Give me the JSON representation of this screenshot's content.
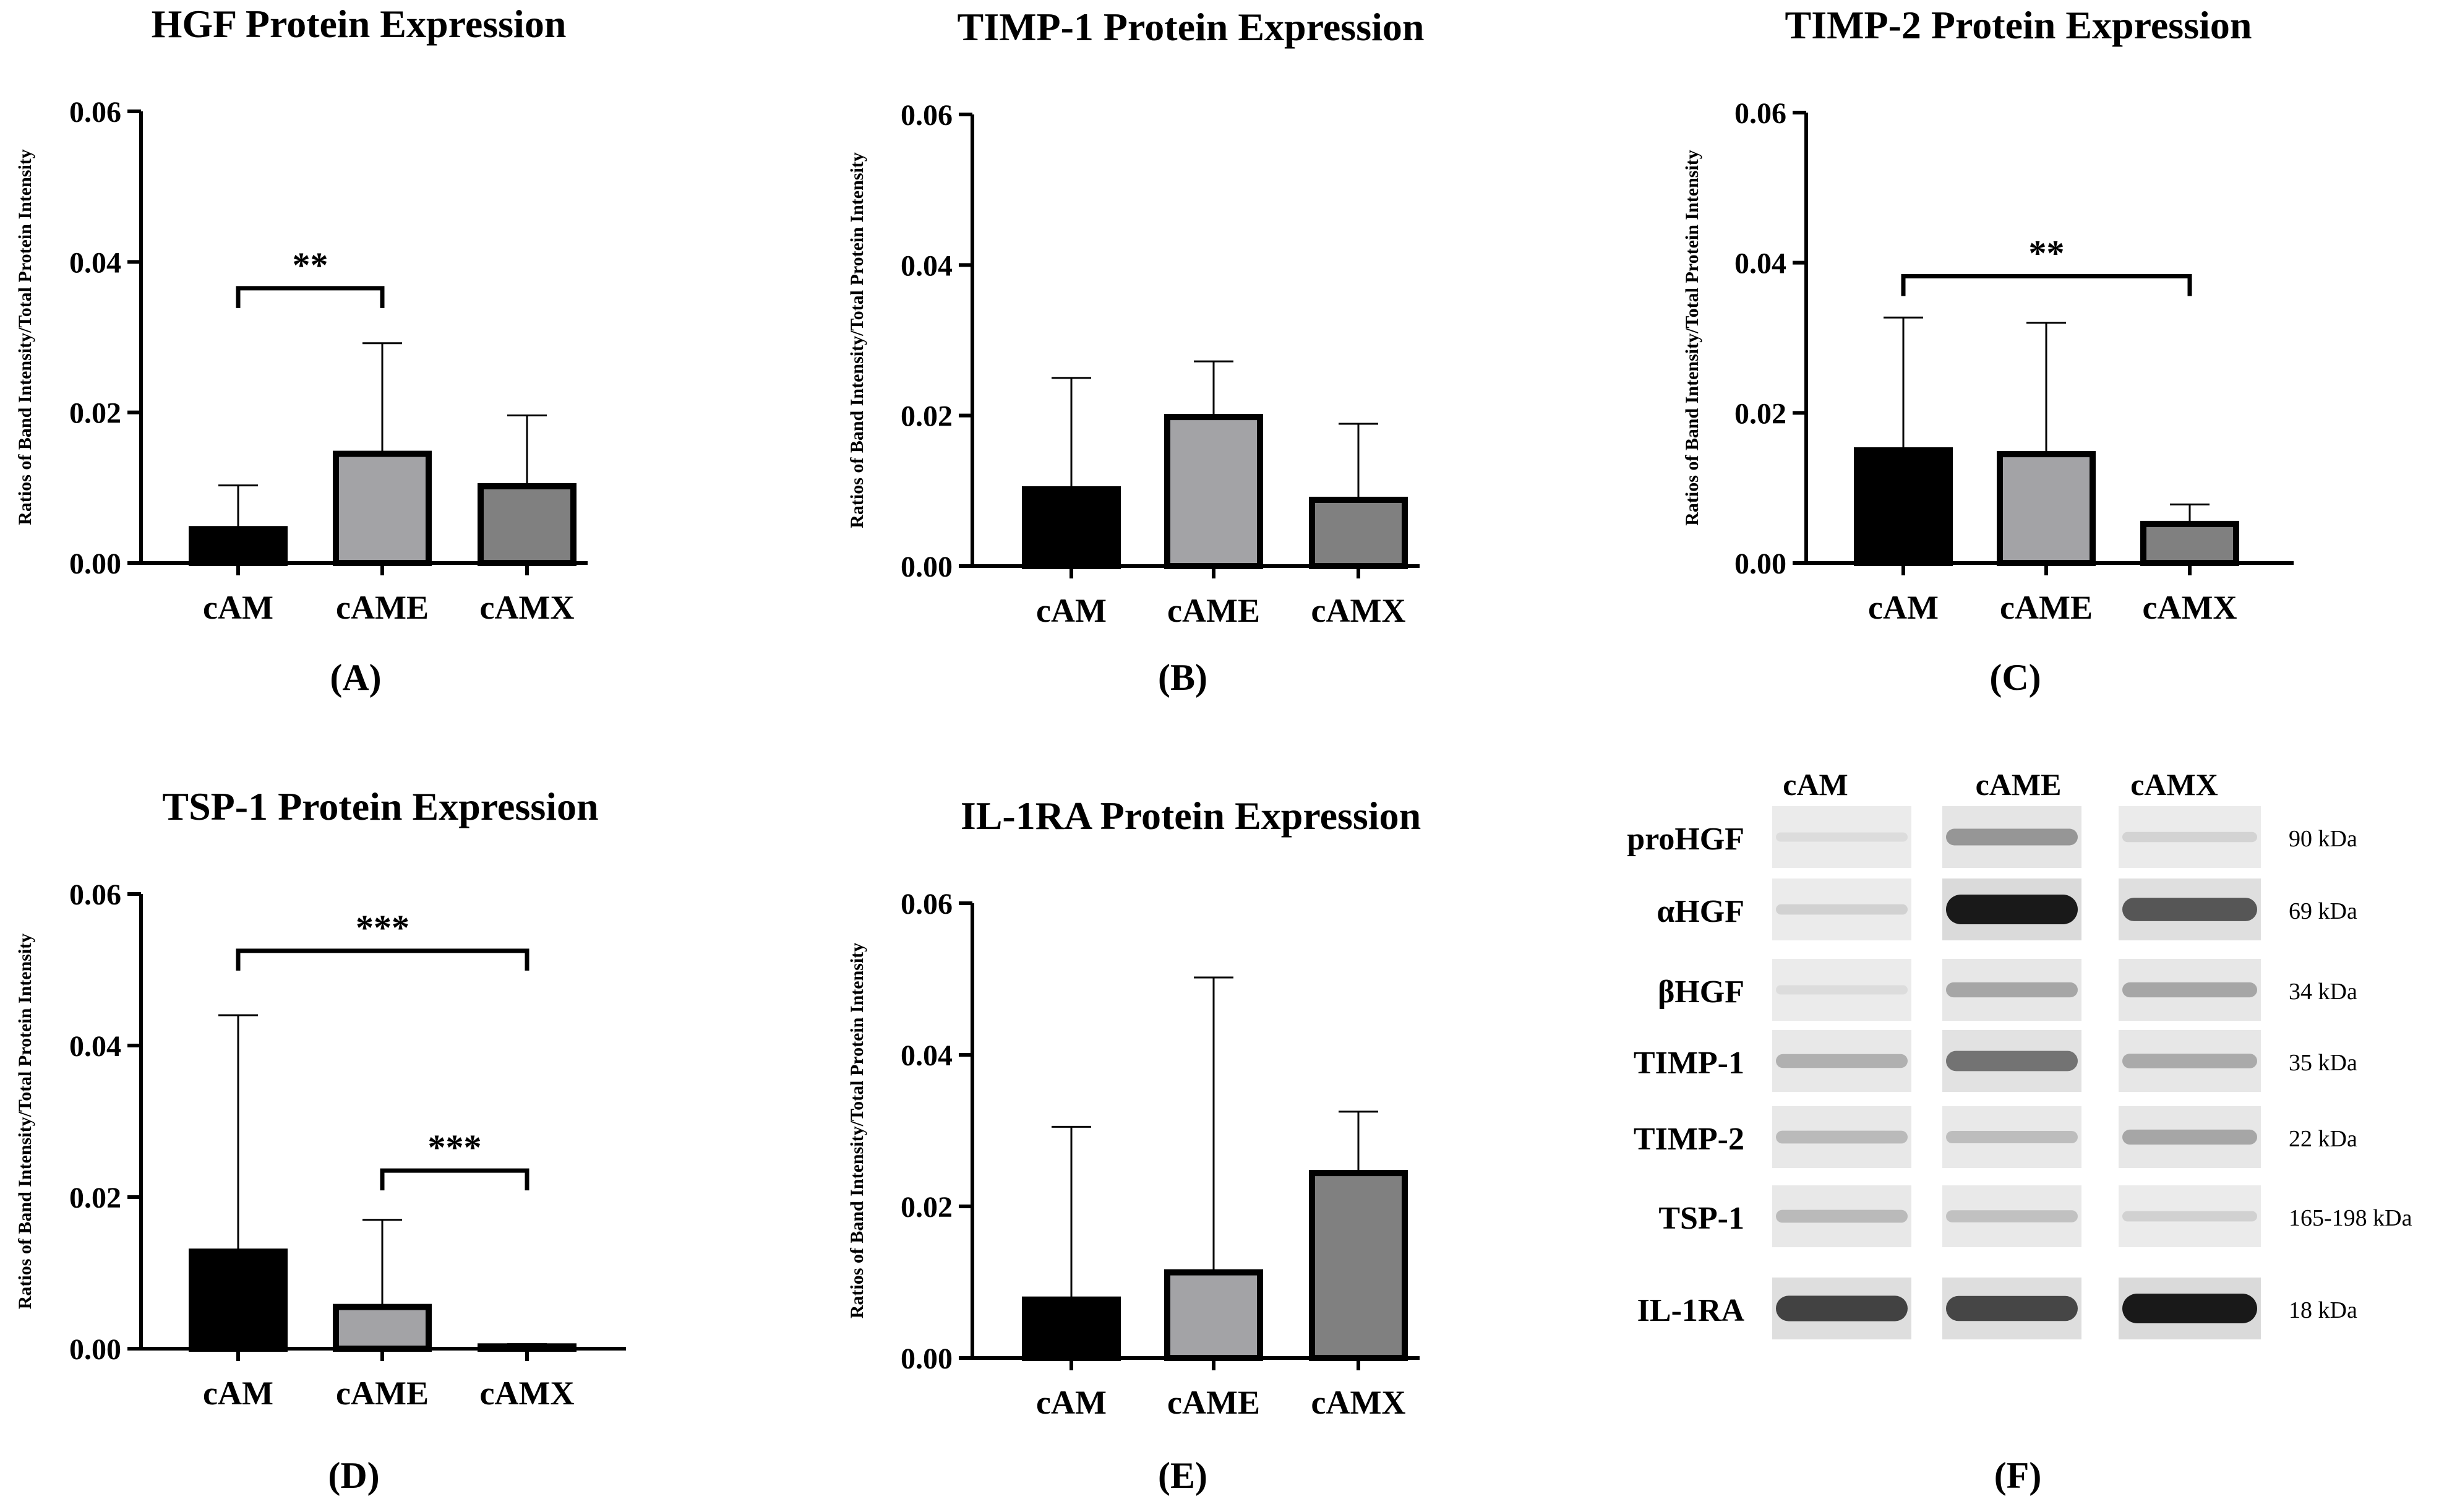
{
  "chart_data": [
    {
      "type": "bar",
      "panel": "(A)",
      "title": "HGF Protein Expression",
      "ylabel": "Ratios of Band Intensity/Total Protein Intensity",
      "xlabel": "",
      "categories": [
        "cAM",
        "cAME",
        "cAMX"
      ],
      "values": [
        0.0045,
        0.0145,
        0.0102
      ],
      "errors": [
        0.0058,
        0.0147,
        0.0094
      ],
      "colors": [
        "#000000",
        "#a3a3a6",
        "#808080"
      ],
      "ylim": [
        0,
        0.06
      ],
      "yticks": [
        "0.00",
        "0.02",
        "0.04",
        "0.06"
      ],
      "significance": [
        {
          "from": 0,
          "to": 1,
          "label": "**",
          "y": 0.0365
        }
      ]
    },
    {
      "type": "bar",
      "panel": "(B)",
      "title": "TIMP-1 Protein Expression",
      "ylabel": "Ratios of Band Intensity/Total Protein Intensity",
      "xlabel": "",
      "categories": [
        "cAM",
        "cAME",
        "cAMX"
      ],
      "values": [
        0.0102,
        0.0198,
        0.0088
      ],
      "errors": [
        0.0148,
        0.0074,
        0.0101
      ],
      "colors": [
        "#000000",
        "#a3a3a6",
        "#808080"
      ],
      "ylim": [
        0,
        0.06
      ],
      "yticks": [
        "0.00",
        "0.02",
        "0.04",
        "0.06"
      ],
      "significance": []
    },
    {
      "type": "bar",
      "panel": "(C)",
      "title": "TIMP-2 Protein Expression",
      "ylabel": "Ratios of Band Intensity/Total Protein Intensity",
      "xlabel": "",
      "categories": [
        "cAM",
        "cAME",
        "cAMX"
      ],
      "values": [
        0.015,
        0.0145,
        0.0052
      ],
      "errors": [
        0.0177,
        0.0175,
        0.0026
      ],
      "colors": [
        "#000000",
        "#a3a3a6",
        "#808080"
      ],
      "ylim": [
        0,
        0.06
      ],
      "yticks": [
        "0.00",
        "0.02",
        "0.04",
        "0.06"
      ],
      "significance": [
        {
          "from": 0,
          "to": 2,
          "label": "**",
          "y": 0.0382
        }
      ]
    },
    {
      "type": "bar",
      "panel": "(D)",
      "title": "TSP-1 Protein Expression",
      "ylabel": "Ratios of Band Intensity/Total Protein Intensity",
      "xlabel": "",
      "categories": [
        "cAM",
        "cAME",
        "cAMX"
      ],
      "values": [
        0.0128,
        0.0055,
        0.0003
      ],
      "errors": [
        0.0312,
        0.0115,
        0.0003
      ],
      "colors": [
        "#000000",
        "#a3a3a6",
        "#808080"
      ],
      "ylim": [
        0,
        0.06
      ],
      "yticks": [
        "0.00",
        "0.02",
        "0.04",
        "0.06"
      ],
      "significance": [
        {
          "from": 0,
          "to": 2,
          "label": "***",
          "y": 0.0525
        },
        {
          "from": 1,
          "to": 2,
          "label": "***",
          "y": 0.0235
        }
      ]
    },
    {
      "type": "bar",
      "panel": "(E)",
      "title": "IL-1RA Protein Expression",
      "ylabel": "Ratios of Band Intensity/Total Protein Intensity",
      "xlabel": "",
      "categories": [
        "cAM",
        "cAME",
        "cAMX"
      ],
      "values": [
        0.0077,
        0.0113,
        0.0244
      ],
      "errors": [
        0.0228,
        0.0389,
        0.0081
      ],
      "colors": [
        "#000000",
        "#a3a3a6",
        "#808080"
      ],
      "ylim": [
        0,
        0.06
      ],
      "yticks": [
        "0.00",
        "0.02",
        "0.04",
        "0.06"
      ],
      "significance": []
    }
  ],
  "blot": {
    "panel": "(F)",
    "columns": [
      "cAM",
      "cAME",
      "cAMX"
    ],
    "rows": [
      {
        "label": "proHGF",
        "size": "90 kDa",
        "band": [
          0.03,
          0.38,
          0.07
        ]
      },
      {
        "label": "αHGF",
        "size": "69 kDa",
        "band": [
          0.08,
          1.0,
          0.7
        ]
      },
      {
        "label": "βHGF",
        "size": "34 kDa",
        "band": [
          0.03,
          0.3,
          0.3
        ]
      },
      {
        "label": "TIMP-1",
        "size": "35 kDa",
        "band": [
          0.25,
          0.55,
          0.28
        ]
      },
      {
        "label": "TIMP-2",
        "size": "22 kDa",
        "band": [
          0.2,
          0.18,
          0.3
        ]
      },
      {
        "label": "TSP-1",
        "size": "165-198 kDa",
        "band": [
          0.2,
          0.16,
          0.08
        ]
      },
      {
        "label": "IL-1RA",
        "size": "18 kDa",
        "band": [
          0.8,
          0.78,
          1.0
        ]
      }
    ]
  }
}
